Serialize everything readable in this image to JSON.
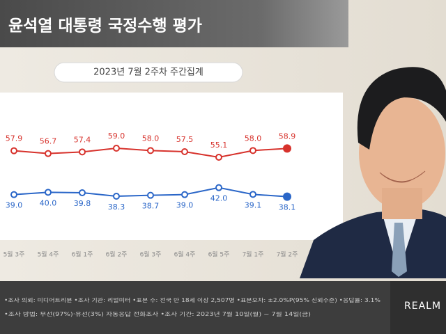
{
  "chart_data": {
    "type": "line",
    "title": "윤석열 대통령 국정수행 평가",
    "subtitle": "2023년 7월 2주차 주간집계",
    "categories": [
      "5월 3주",
      "5월 4주",
      "6월 1주",
      "6월 2주",
      "6월 3주",
      "6월 4주",
      "6월 5주",
      "7월 1주",
      "7월 2주"
    ],
    "series": [
      {
        "color": "#d7322c",
        "values": [
          57.9,
          56.7,
          57.4,
          59.0,
          58.0,
          57.5,
          55.1,
          58.0,
          58.9
        ],
        "value_labels": [
          "57.9",
          "56.7",
          "57.4",
          "59.0",
          "58.0",
          "57.5",
          "55.1",
          "58.0",
          "58.9"
        ]
      },
      {
        "color": "#2a66c8",
        "values": [
          39.0,
          40.0,
          39.8,
          38.3,
          38.7,
          39.0,
          42.0,
          39.1,
          38.1
        ],
        "value_labels": [
          "39.0",
          "40.0",
          "39.8",
          "38.3",
          "38.7",
          "39.0",
          "42.0",
          "39.1",
          "38.1"
        ]
      }
    ],
    "ylim": [
      20,
      80
    ],
    "footer": [
      "•조사 의뢰: 미디어트리뷴 •조사 기관: 리얼미터 •표본 수: 전국 만 18세 이상 2,507명 •표본오차: ±2.0%P(95% 신뢰수준) •응답률: 3.1%",
      "•조사 방법: 무선(97%)·유선(3%) 자동응답 전화조사 •조사 기간: 2023년 7월 10일(월) ~ 7월 14일(금)"
    ],
    "brand": "REALM"
  }
}
